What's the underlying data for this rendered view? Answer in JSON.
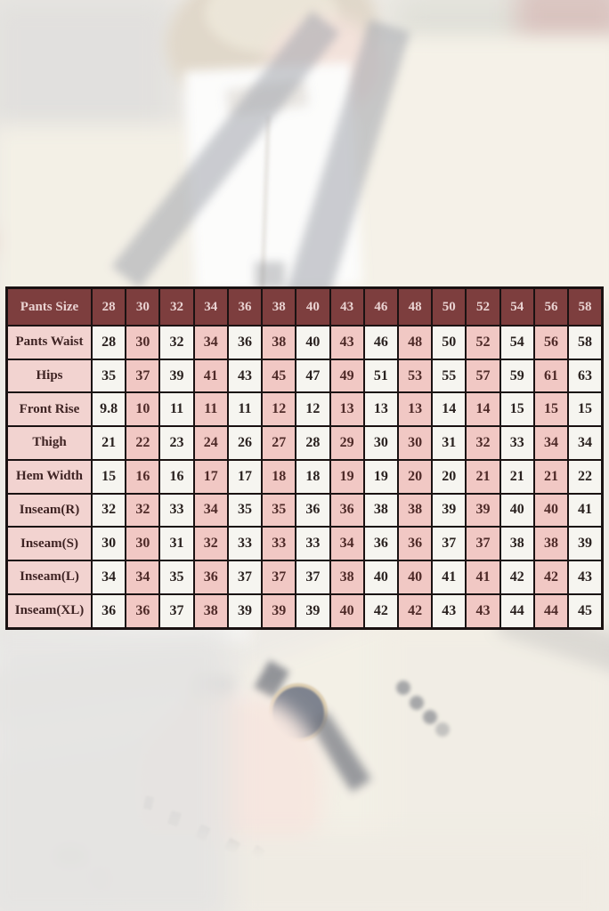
{
  "chart_data": {
    "type": "table",
    "header": [
      "Pants Size",
      "28",
      "30",
      "32",
      "34",
      "36",
      "38",
      "40",
      "43",
      "46",
      "48",
      "50",
      "52",
      "54",
      "56",
      "58"
    ],
    "rows": [
      {
        "label": "Pants Waist",
        "values": [
          "28",
          "30",
          "32",
          "34",
          "36",
          "38",
          "40",
          "43",
          "46",
          "48",
          "50",
          "52",
          "54",
          "56",
          "58"
        ]
      },
      {
        "label": "Hips",
        "values": [
          "35",
          "37",
          "39",
          "41",
          "43",
          "45",
          "47",
          "49",
          "51",
          "53",
          "55",
          "57",
          "59",
          "61",
          "63"
        ]
      },
      {
        "label": "Front Rise",
        "values": [
          "9.8",
          "10",
          "11",
          "11",
          "11",
          "12",
          "12",
          "13",
          "13",
          "13",
          "14",
          "14",
          "15",
          "15",
          "15"
        ]
      },
      {
        "label": "Thigh",
        "values": [
          "21",
          "22",
          "23",
          "24",
          "26",
          "27",
          "28",
          "29",
          "30",
          "30",
          "31",
          "32",
          "33",
          "34",
          "34"
        ]
      },
      {
        "label": "Hem Width",
        "values": [
          "15",
          "16",
          "16",
          "17",
          "17",
          "18",
          "18",
          "19",
          "19",
          "20",
          "20",
          "21",
          "21",
          "21",
          "22"
        ]
      },
      {
        "label": "Inseam(R)",
        "values": [
          "32",
          "32",
          "33",
          "34",
          "35",
          "35",
          "36",
          "36",
          "38",
          "38",
          "39",
          "39",
          "40",
          "40",
          "41"
        ]
      },
      {
        "label": "Inseam(S)",
        "values": [
          "30",
          "30",
          "31",
          "32",
          "33",
          "33",
          "33",
          "34",
          "36",
          "36",
          "37",
          "37",
          "38",
          "38",
          "39"
        ]
      },
      {
        "label": "Inseam(L)",
        "values": [
          "34",
          "34",
          "35",
          "36",
          "37",
          "37",
          "37",
          "38",
          "40",
          "40",
          "41",
          "41",
          "42",
          "42",
          "43"
        ]
      },
      {
        "label": "Inseam(XL)",
        "values": [
          "36",
          "36",
          "37",
          "38",
          "39",
          "39",
          "39",
          "40",
          "42",
          "42",
          "43",
          "43",
          "44",
          "44",
          "45"
        ]
      }
    ],
    "layout": {
      "grid": "on",
      "column_fill_pattern": "alternating white/pink by size column",
      "legend": "none"
    }
  },
  "colors": {
    "header_bg": "#7d3e3e",
    "header_text": "#e9d2d1",
    "row_label_bg": "#f2d3d0",
    "cell_white_bg": "#f6f5f0",
    "cell_pink_bg": "#f1c8c4",
    "grid_border": "#1a1212",
    "photo_backdrop": "#e8e4dd"
  }
}
